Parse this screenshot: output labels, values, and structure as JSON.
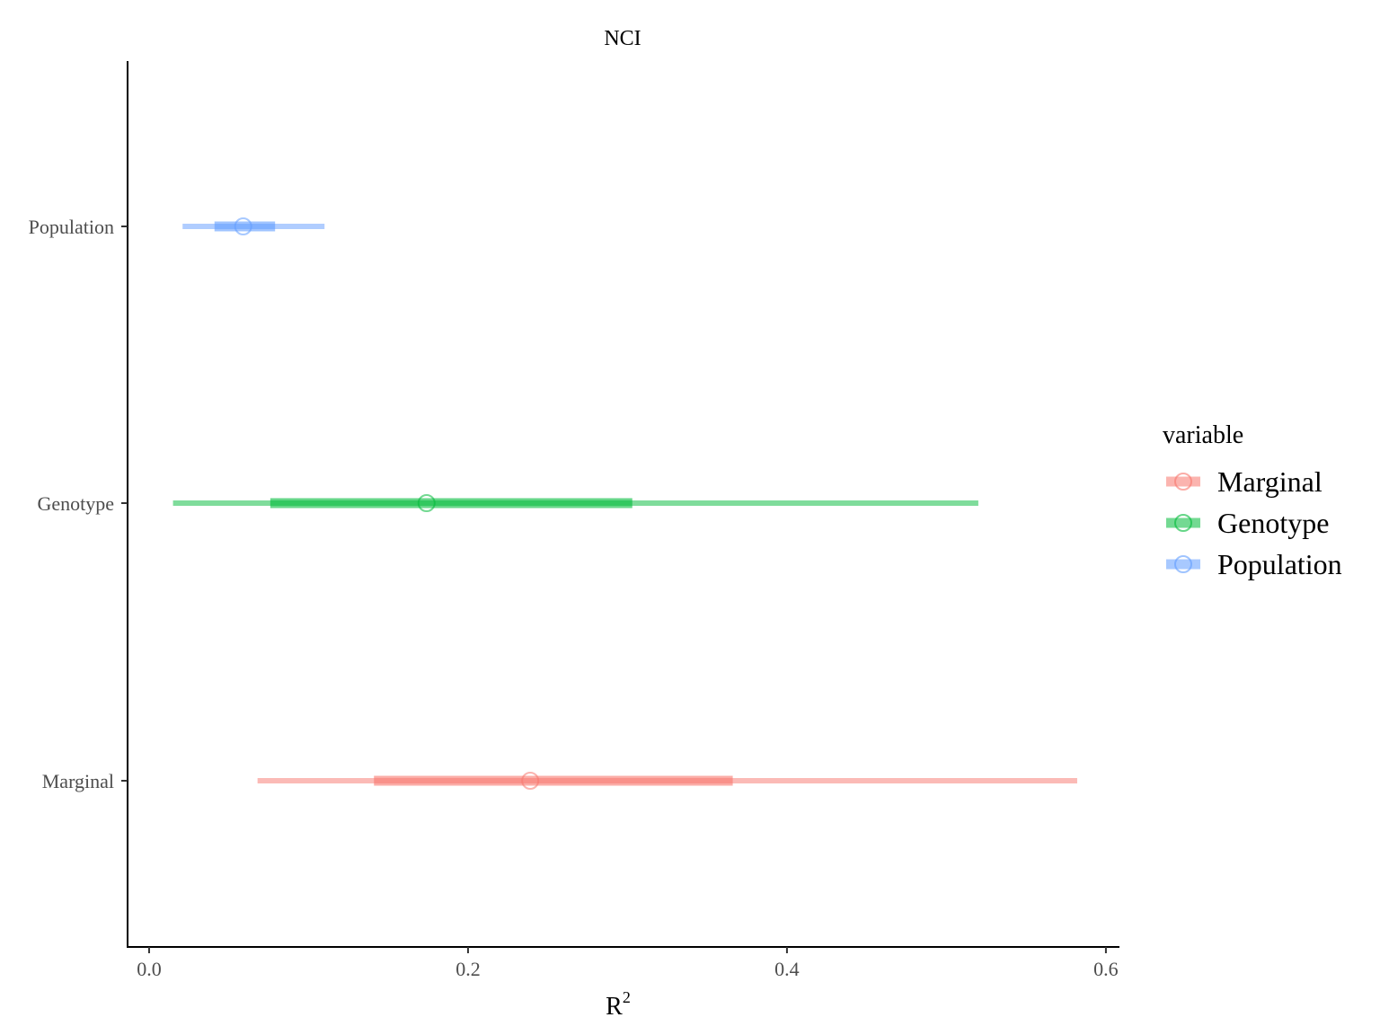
{
  "chart_data": {
    "type": "pointrange",
    "title": "NCI",
    "xlabel": "R",
    "xlabel_superscript": "2",
    "ylabel": "",
    "xlim": [
      -0.0135,
      0.6085
    ],
    "x_ticks": [
      0.0,
      0.2,
      0.4,
      0.6
    ],
    "x_tick_labels": [
      "0.0",
      "0.2",
      "0.4",
      "0.6"
    ],
    "categories": [
      "Population",
      "Genotype",
      "Marginal"
    ],
    "grid": false,
    "legend": {
      "title": "variable",
      "position": "right",
      "entries": [
        "Marginal",
        "Genotype",
        "Population"
      ]
    },
    "series": [
      {
        "name": "Population",
        "color": "#619CFF",
        "point": 0.059,
        "inner": [
          0.041,
          0.079
        ],
        "outer": [
          0.021,
          0.11
        ]
      },
      {
        "name": "Genotype",
        "color": "#00BA38",
        "point": 0.174,
        "inner": [
          0.076,
          0.303
        ],
        "outer": [
          0.015,
          0.52
        ]
      },
      {
        "name": "Marginal",
        "color": "#F8766D",
        "point": 0.239,
        "inner": [
          0.141,
          0.366
        ],
        "outer": [
          0.068,
          0.582
        ]
      }
    ]
  }
}
